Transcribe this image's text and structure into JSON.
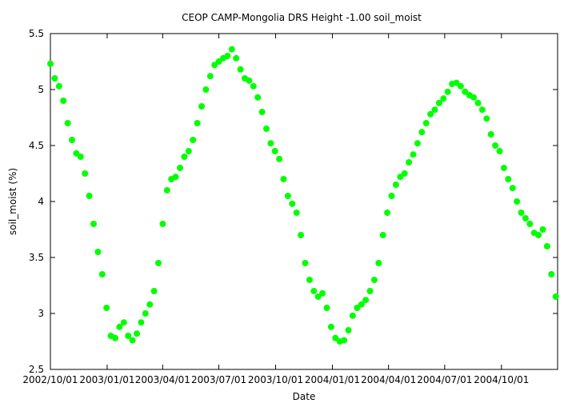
{
  "chart_data": {
    "type": "scatter",
    "title": "CEOP CAMP-Mongolia DRS Height -1.00 soil_moist",
    "xlabel": "Date",
    "ylabel": "soil_moist (%)",
    "xlim": [
      "2002-10-01",
      "2004-12-31"
    ],
    "ylim": [
      2.5,
      5.5
    ],
    "grid": false,
    "marker_color": "#00ff00",
    "y_ticks": [
      "2.5",
      "3",
      "3.5",
      "4",
      "4.5",
      "5",
      "5.5"
    ],
    "x_ticks": [
      {
        "date": "2002-10-01",
        "label": "2002/10/01"
      },
      {
        "date": "2003-01-01",
        "label": "2003/01/01"
      },
      {
        "date": "2003-04-01",
        "label": "2003/04/01"
      },
      {
        "date": "2003-07-01",
        "label": "2003/07/01"
      },
      {
        "date": "2003-10-01",
        "label": "2003/10/01"
      },
      {
        "date": "2004-01-01",
        "label": "2004/01/01"
      },
      {
        "date": "2004-04-01",
        "label": "2004/04/01"
      },
      {
        "date": "2004-07-01",
        "label": "2004/07/01"
      },
      {
        "date": "2004-10-01",
        "label": "2004/10/01"
      }
    ],
    "series": [
      {
        "x": [
          "2002-10-01",
          "2002-10-08",
          "2002-10-15",
          "2002-10-22",
          "2002-10-29",
          "2002-11-05",
          "2002-11-12",
          "2002-11-19",
          "2002-11-26",
          "2002-12-03",
          "2002-12-10",
          "2002-12-17",
          "2002-12-24",
          "2002-12-31",
          "2003-01-07",
          "2003-01-14",
          "2003-01-21",
          "2003-01-28",
          "2003-02-04",
          "2003-02-11",
          "2003-02-18",
          "2003-02-25",
          "2003-03-04",
          "2003-03-11",
          "2003-03-18",
          "2003-03-25",
          "2003-04-01",
          "2003-04-08",
          "2003-04-15",
          "2003-04-22",
          "2003-04-29",
          "2003-05-06",
          "2003-05-13",
          "2003-05-20",
          "2003-05-27",
          "2003-06-03",
          "2003-06-10",
          "2003-06-17",
          "2003-06-24",
          "2003-07-01",
          "2003-07-08",
          "2003-07-15",
          "2003-07-22",
          "2003-07-29",
          "2003-08-05",
          "2003-08-12",
          "2003-08-19",
          "2003-08-26",
          "2003-09-02",
          "2003-09-09",
          "2003-09-16",
          "2003-09-23",
          "2003-09-30",
          "2003-10-07",
          "2003-10-14",
          "2003-10-21",
          "2003-10-28",
          "2003-11-04",
          "2003-11-11",
          "2003-11-18",
          "2003-11-25",
          "2003-12-02",
          "2003-12-09",
          "2003-12-16",
          "2003-12-23",
          "2003-12-30",
          "2004-01-06",
          "2004-01-13",
          "2004-01-20",
          "2004-01-27",
          "2004-02-03",
          "2004-02-10",
          "2004-02-17",
          "2004-02-24",
          "2004-03-02",
          "2004-03-09",
          "2004-03-16",
          "2004-03-23",
          "2004-03-30",
          "2004-04-06",
          "2004-04-13",
          "2004-04-20",
          "2004-04-27",
          "2004-05-04",
          "2004-05-11",
          "2004-05-18",
          "2004-05-25",
          "2004-06-01",
          "2004-06-08",
          "2004-06-15",
          "2004-06-22",
          "2004-06-29",
          "2004-07-06",
          "2004-07-13",
          "2004-07-20",
          "2004-07-27",
          "2004-08-03",
          "2004-08-10",
          "2004-08-17",
          "2004-08-24",
          "2004-08-31",
          "2004-09-07",
          "2004-09-14",
          "2004-09-21",
          "2004-09-28",
          "2004-10-05",
          "2004-10-12",
          "2004-10-19",
          "2004-10-26",
          "2004-11-02",
          "2004-11-09",
          "2004-11-16",
          "2004-11-23",
          "2004-11-30",
          "2004-12-07",
          "2004-12-14",
          "2004-12-21",
          "2004-12-28"
        ],
        "y": [
          5.23,
          5.1,
          5.03,
          4.9,
          4.7,
          4.55,
          4.43,
          4.4,
          4.25,
          4.05,
          3.8,
          3.55,
          3.35,
          3.05,
          2.8,
          2.78,
          2.88,
          2.92,
          2.8,
          2.76,
          2.82,
          2.92,
          3.0,
          3.08,
          3.2,
          3.45,
          3.8,
          4.1,
          4.2,
          4.22,
          4.3,
          4.4,
          4.45,
          4.55,
          4.7,
          4.85,
          5.0,
          5.12,
          5.22,
          5.25,
          5.28,
          5.3,
          5.36,
          5.28,
          5.18,
          5.1,
          5.08,
          5.03,
          4.93,
          4.8,
          4.65,
          4.52,
          4.45,
          4.38,
          4.2,
          4.05,
          3.98,
          3.9,
          3.7,
          3.45,
          3.3,
          3.2,
          3.15,
          3.18,
          3.05,
          2.88,
          2.78,
          2.75,
          2.76,
          2.85,
          2.98,
          3.05,
          3.08,
          3.12,
          3.2,
          3.3,
          3.45,
          3.7,
          3.9,
          4.05,
          4.15,
          4.22,
          4.25,
          4.35,
          4.42,
          4.52,
          4.62,
          4.7,
          4.78,
          4.82,
          4.88,
          4.92,
          4.98,
          5.05,
          5.06,
          5.03,
          4.98,
          4.95,
          4.93,
          4.88,
          4.82,
          4.74,
          4.6,
          4.5,
          4.45,
          4.3,
          4.2,
          4.12,
          4.0,
          3.9,
          3.85,
          3.8,
          3.72,
          3.7,
          3.75,
          3.6,
          3.35,
          3.15
        ]
      }
    ]
  }
}
